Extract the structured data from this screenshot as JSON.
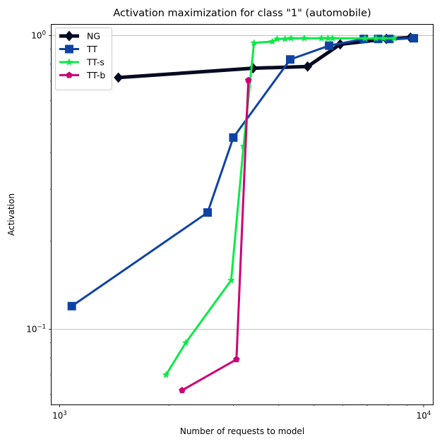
{
  "chart_data": {
    "type": "line",
    "title": "Activation maximization for class \"1\" (automobile)",
    "xlabel": "Number of requests to model",
    "ylabel": "Activation",
    "xscale": "log",
    "yscale": "log",
    "xlim": [
      950,
      10600
    ],
    "ylim": [
      0.0555,
      1.09
    ],
    "x_ticks": [
      {
        "value": 1000,
        "base": "10",
        "exp": "3"
      },
      {
        "value": 10000,
        "base": "10",
        "exp": "4"
      }
    ],
    "y_ticks": [
      {
        "value": 1,
        "base": "10",
        "exp": "0"
      },
      {
        "value": 0.1,
        "base": "10",
        "exp": "−1"
      }
    ],
    "grid": "horizontal major lines",
    "legend_position": "top-left",
    "series": [
      {
        "name": "NG",
        "color": "#050a22",
        "marker": "diamond",
        "line_width": 5,
        "x": [
          1450,
          3400,
          4800,
          5900,
          7900,
          9200
        ],
        "y": [
          0.72,
          0.775,
          0.785,
          0.935,
          0.975,
          0.985
        ]
      },
      {
        "name": "TT",
        "color": "#0f43a3",
        "marker": "square",
        "line_width": 3,
        "x": [
          1080,
          2550,
          3000,
          4300,
          5500,
          6850,
          7500,
          8050,
          9400
        ],
        "y": [
          0.12,
          0.25,
          0.45,
          0.83,
          0.925,
          0.975,
          0.975,
          0.975,
          0.98
        ]
      },
      {
        "name": "TT-s",
        "color": "#0ce848",
        "marker": "star",
        "line_width": 3,
        "x": [
          1960,
          2220,
          2960,
          3200,
          3420,
          3840,
          3960,
          4160,
          4320,
          4700,
          5240,
          5460,
          5620,
          6900,
          7400,
          7760,
          8300
        ],
        "y": [
          0.07,
          0.09,
          0.147,
          0.42,
          0.945,
          0.955,
          0.975,
          0.975,
          0.98,
          0.98,
          0.98,
          0.98,
          0.98,
          0.98,
          0.98,
          0.98,
          0.98
        ]
      },
      {
        "name": "TT-b",
        "color": "#cc0077",
        "marker": "pentagon",
        "line_width": 3,
        "x": [
          2170,
          3060,
          3300
        ],
        "y": [
          0.062,
          0.079,
          0.705
        ]
      }
    ]
  }
}
